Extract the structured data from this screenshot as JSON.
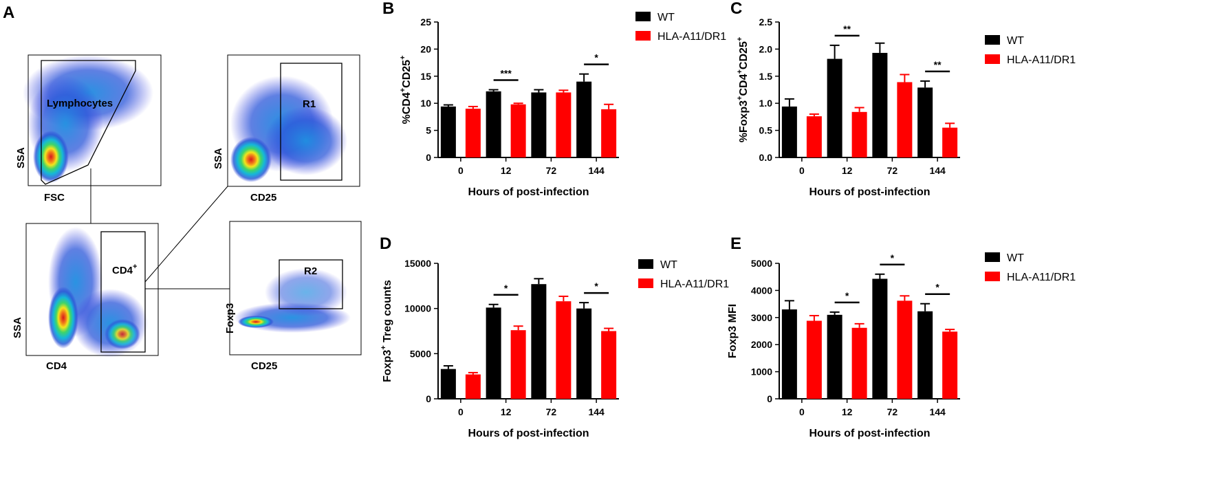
{
  "panels": {
    "A": {
      "letter": "A",
      "plot1": {
        "x_label": "FSC",
        "y_label": "SSA",
        "gate": "Lymphocytes"
      },
      "plot2": {
        "x_label": "CD25",
        "y_label": "SSA",
        "gate": "R1"
      },
      "plot3": {
        "x_label": "CD4",
        "y_label": "SSA",
        "gate": "CD4",
        "gate_sup": "+"
      },
      "plot4": {
        "x_label": "CD25",
        "y_label": "Foxp3",
        "gate": "R2"
      }
    }
  },
  "chart_data": [
    {
      "panel": "B",
      "type": "bar",
      "ylabel_parts": [
        {
          "t": "%CD4",
          "sup": false
        },
        {
          "t": "+",
          "sup": true
        },
        {
          "t": "CD25",
          "sup": false
        },
        {
          "t": "+",
          "sup": true
        }
      ],
      "xlabel": "Hours of post-infection",
      "categories": [
        "0",
        "12",
        "72",
        "144"
      ],
      "ylim": [
        0,
        25
      ],
      "yticks": [
        0,
        5,
        10,
        15,
        20,
        25
      ],
      "series": [
        {
          "name": "WT",
          "color": "#000000",
          "values": [
            9.4,
            12.2,
            12.0,
            14.0
          ],
          "errors": [
            0.3,
            0.3,
            0.5,
            1.4
          ]
        },
        {
          "name": "HLA-A11/DR1",
          "color": "#ff0000",
          "values": [
            9.0,
            9.8,
            12.0,
            8.9
          ],
          "errors": [
            0.4,
            0.2,
            0.4,
            0.9
          ]
        }
      ],
      "significance": [
        {
          "category": "12",
          "label": "***"
        },
        {
          "category": "144",
          "label": "*"
        }
      ]
    },
    {
      "panel": "C",
      "type": "bar",
      "ylabel_parts": [
        {
          "t": "%Foxp3",
          "sup": false
        },
        {
          "t": "+",
          "sup": true
        },
        {
          "t": "CD4",
          "sup": false
        },
        {
          "t": "+",
          "sup": true
        },
        {
          "t": "CD25",
          "sup": false
        },
        {
          "t": "+",
          "sup": true
        }
      ],
      "xlabel": "Hours of post-infection",
      "categories": [
        "0",
        "12",
        "72",
        "144"
      ],
      "ylim": [
        0,
        2.5
      ],
      "yticks": [
        0.0,
        0.5,
        1.0,
        1.5,
        2.0,
        2.5
      ],
      "tick_decimals": 1,
      "series": [
        {
          "name": "WT",
          "color": "#000000",
          "values": [
            0.94,
            1.82,
            1.93,
            1.29
          ],
          "errors": [
            0.14,
            0.25,
            0.18,
            0.12
          ]
        },
        {
          "name": "HLA-A11/DR1",
          "color": "#ff0000",
          "values": [
            0.76,
            0.84,
            1.39,
            0.55
          ],
          "errors": [
            0.04,
            0.08,
            0.14,
            0.08
          ]
        }
      ],
      "significance": [
        {
          "category": "12",
          "label": "**"
        },
        {
          "category": "144",
          "label": "**"
        }
      ]
    },
    {
      "panel": "D",
      "type": "bar",
      "ylabel_parts": [
        {
          "t": "Foxp3",
          "sup": false
        },
        {
          "t": "+",
          "sup": true
        },
        {
          "t": " Treg counts",
          "sup": false
        }
      ],
      "xlabel": "Hours of post-infection",
      "categories": [
        "0",
        "12",
        "72",
        "144"
      ],
      "ylim": [
        0,
        15000
      ],
      "yticks": [
        0,
        5000,
        10000,
        15000
      ],
      "series": [
        {
          "name": "WT",
          "color": "#000000",
          "values": [
            3300,
            10100,
            12700,
            10000
          ],
          "errors": [
            350,
            350,
            600,
            650
          ]
        },
        {
          "name": "HLA-A11/DR1",
          "color": "#ff0000",
          "values": [
            2700,
            7600,
            10800,
            7500
          ],
          "errors": [
            200,
            450,
            550,
            300
          ]
        }
      ],
      "significance": [
        {
          "category": "12",
          "label": "*"
        },
        {
          "category": "144",
          "label": "*"
        }
      ]
    },
    {
      "panel": "E",
      "type": "bar",
      "ylabel_parts": [
        {
          "t": "Foxp3 MFI",
          "sup": false
        }
      ],
      "xlabel": "Hours of post-infection",
      "categories": [
        "0",
        "12",
        "72",
        "144"
      ],
      "ylim": [
        0,
        5000
      ],
      "yticks": [
        0,
        1000,
        2000,
        3000,
        4000,
        5000
      ],
      "series": [
        {
          "name": "WT",
          "color": "#000000",
          "values": [
            3300,
            3100,
            4430,
            3230
          ],
          "errors": [
            320,
            100,
            170,
            280
          ]
        },
        {
          "name": "HLA-A11/DR1",
          "color": "#ff0000",
          "values": [
            2880,
            2620,
            3620,
            2480
          ],
          "errors": [
            190,
            150,
            180,
            80
          ]
        }
      ],
      "significance": [
        {
          "category": "12",
          "label": "*"
        },
        {
          "category": "72",
          "label": "*"
        },
        {
          "category": "144",
          "label": "*"
        }
      ]
    }
  ]
}
